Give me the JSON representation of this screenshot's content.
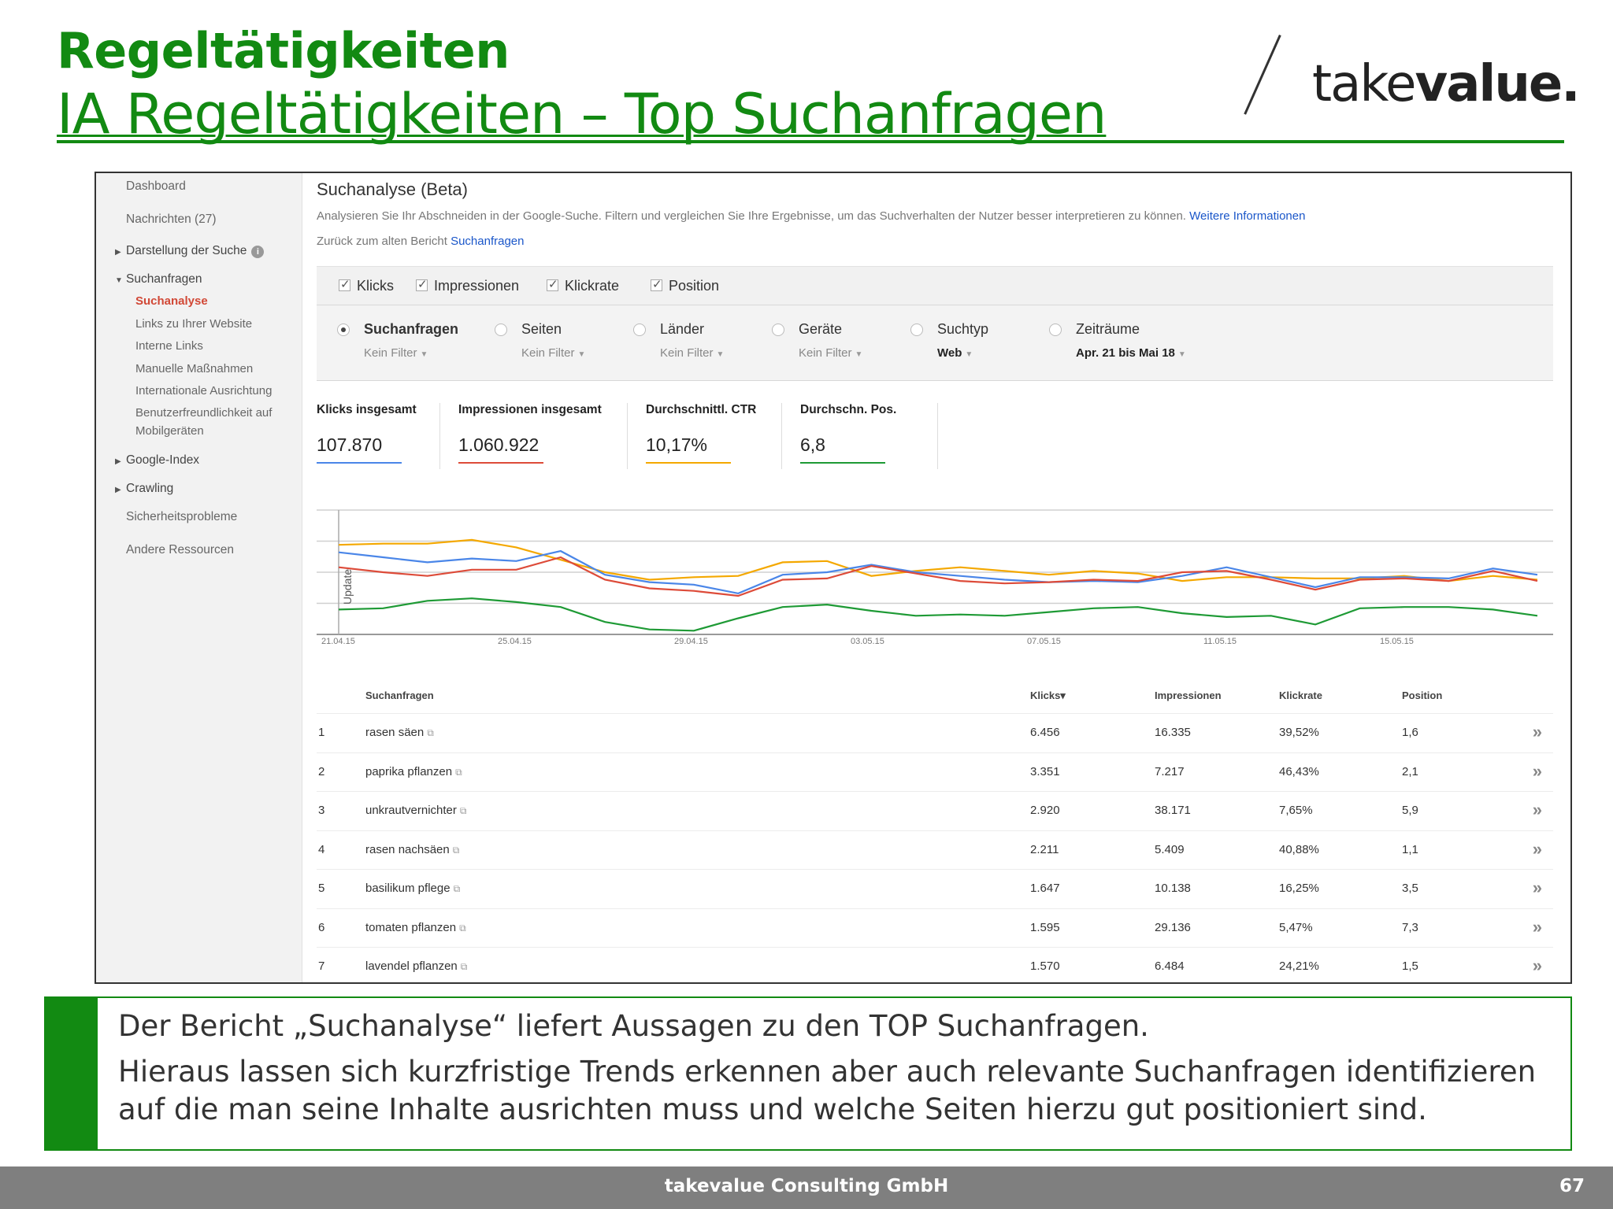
{
  "slide": {
    "title": "Regeltätigkeiten",
    "subtitle": "IA Regeltätigkeiten – Top Suchanfragen",
    "logo_light": "take",
    "logo_bold": "value."
  },
  "sidebar": {
    "dashboard": "Dashboard",
    "messages": "Nachrichten (27)",
    "search_appearance": "Darstellung der Suche",
    "search_traffic": "Suchanfragen",
    "search_analytics": "Suchanalyse",
    "links_to_site": "Links zu Ihrer Website",
    "internal_links": "Interne Links",
    "manual_actions": "Manuelle Maßnahmen",
    "international": "Internationale Ausrichtung",
    "mobile_1": "Benutzerfreundlichkeit auf",
    "mobile_2": "Mobilgeräten",
    "google_index": "Google-Index",
    "crawling": "Crawling",
    "security": "Sicherheitsprobleme",
    "other": "Andere Ressourcen"
  },
  "main": {
    "title": "Suchanalyse (Beta)",
    "description": "Analysieren Sie Ihr Abschneiden in der Google-Suche. Filtern und vergleichen Sie Ihre Ergebnisse, um das Suchverhalten der Nutzer besser interpretieren zu können.",
    "more_info": "Weitere Informationen",
    "back_text": "Zurück zum alten Bericht",
    "back_link": "Suchanfragen"
  },
  "metrics": {
    "clicks": "Klicks",
    "impressions": "Impressionen",
    "ctr": "Klickrate",
    "position": "Position"
  },
  "filters": {
    "queries": {
      "label": "Suchanfragen",
      "sub": "Kein Filter"
    },
    "pages": {
      "label": "Seiten",
      "sub": "Kein Filter"
    },
    "countries": {
      "label": "Länder",
      "sub": "Kein Filter"
    },
    "devices": {
      "label": "Geräte",
      "sub": "Kein Filter"
    },
    "search_type": {
      "label": "Suchtyp",
      "sub": "Web"
    },
    "dates": {
      "label": "Zeiträume",
      "sub": "Apr. 21 bis Mai 18"
    }
  },
  "kpis": [
    {
      "label": "Klicks insgesamt",
      "value": "107.870",
      "color": "#4a86e8"
    },
    {
      "label": "Impressionen insgesamt",
      "value": "1.060.922",
      "color": "#dd4b39"
    },
    {
      "label": "Durchschnittl. CTR",
      "value": "10,17%",
      "color": "#f4a800"
    },
    {
      "label": "Durchschn. Pos.",
      "value": "6,8",
      "color": "#1e9a35"
    }
  ],
  "chart_data": {
    "type": "line",
    "annotation": "Update",
    "x_ticks": [
      "21.04.15",
      "25.04.15",
      "29.04.15",
      "03.05.15",
      "07.05.15",
      "11.05.15",
      "15.05.15"
    ],
    "num_points": 28,
    "series": [
      {
        "color": "#f4a800",
        "values": [
          0.72,
          0.73,
          0.73,
          0.76,
          0.7,
          0.6,
          0.5,
          0.44,
          0.46,
          0.47,
          0.58,
          0.59,
          0.47,
          0.51,
          0.54,
          0.51,
          0.48,
          0.51,
          0.49,
          0.43,
          0.46,
          0.46,
          0.45,
          0.45,
          0.47,
          0.43,
          0.47,
          0.44
        ]
      },
      {
        "color": "#4a86e8",
        "values": [
          0.66,
          0.62,
          0.58,
          0.61,
          0.59,
          0.67,
          0.48,
          0.42,
          0.4,
          0.33,
          0.48,
          0.5,
          0.56,
          0.5,
          0.47,
          0.44,
          0.42,
          0.43,
          0.42,
          0.47,
          0.54,
          0.46,
          0.38,
          0.46,
          0.46,
          0.45,
          0.53,
          0.48
        ]
      },
      {
        "color": "#dd4b39",
        "values": [
          0.54,
          0.5,
          0.47,
          0.52,
          0.52,
          0.62,
          0.44,
          0.37,
          0.35,
          0.31,
          0.44,
          0.45,
          0.55,
          0.49,
          0.43,
          0.41,
          0.42,
          0.44,
          0.43,
          0.5,
          0.51,
          0.44,
          0.36,
          0.44,
          0.45,
          0.43,
          0.51,
          0.43
        ]
      },
      {
        "color": "#1e9a35",
        "values": [
          0.2,
          0.21,
          0.27,
          0.29,
          0.26,
          0.22,
          0.1,
          0.04,
          0.03,
          0.13,
          0.22,
          0.24,
          0.19,
          0.15,
          0.16,
          0.15,
          0.18,
          0.21,
          0.22,
          0.17,
          0.14,
          0.15,
          0.08,
          0.21,
          0.22,
          0.22,
          0.2,
          0.15
        ]
      }
    ]
  },
  "table": {
    "headers": {
      "query": "Suchanfragen",
      "clicks": "Klicks▾",
      "impressions": "Impressionen",
      "ctr": "Klickrate",
      "position": "Position"
    },
    "rows": [
      {
        "n": "1",
        "query": "rasen säen",
        "clicks": "6.456",
        "impressions": "16.335",
        "ctr": "39,52%",
        "position": "1,6"
      },
      {
        "n": "2",
        "query": "paprika pflanzen",
        "clicks": "3.351",
        "impressions": "7.217",
        "ctr": "46,43%",
        "position": "2,1"
      },
      {
        "n": "3",
        "query": "unkrautvernichter",
        "clicks": "2.920",
        "impressions": "38.171",
        "ctr": "7,65%",
        "position": "5,9"
      },
      {
        "n": "4",
        "query": "rasen nachsäen",
        "clicks": "2.211",
        "impressions": "5.409",
        "ctr": "40,88%",
        "position": "1,1"
      },
      {
        "n": "5",
        "query": "basilikum pflege",
        "clicks": "1.647",
        "impressions": "10.138",
        "ctr": "16,25%",
        "position": "3,5"
      },
      {
        "n": "6",
        "query": "tomaten pflanzen",
        "clicks": "1.595",
        "impressions": "29.136",
        "ctr": "5,47%",
        "position": "7,3"
      },
      {
        "n": "7",
        "query": "lavendel pflanzen",
        "clicks": "1.570",
        "impressions": "6.484",
        "ctr": "24,21%",
        "position": "1,5"
      }
    ]
  },
  "note": {
    "line1": "Der Bericht „Suchanalyse“ liefert Aussagen zu den TOP Suchanfragen.",
    "line2": "Hieraus lassen sich kurzfristige Trends erkennen aber auch relevante Suchanfragen identifizieren",
    "line3": "auf die man seine Inhalte ausrichten muss und welche Seiten hierzu gut positioniert sind."
  },
  "footer": {
    "company": "takevalue Consulting GmbH",
    "page": "67"
  }
}
